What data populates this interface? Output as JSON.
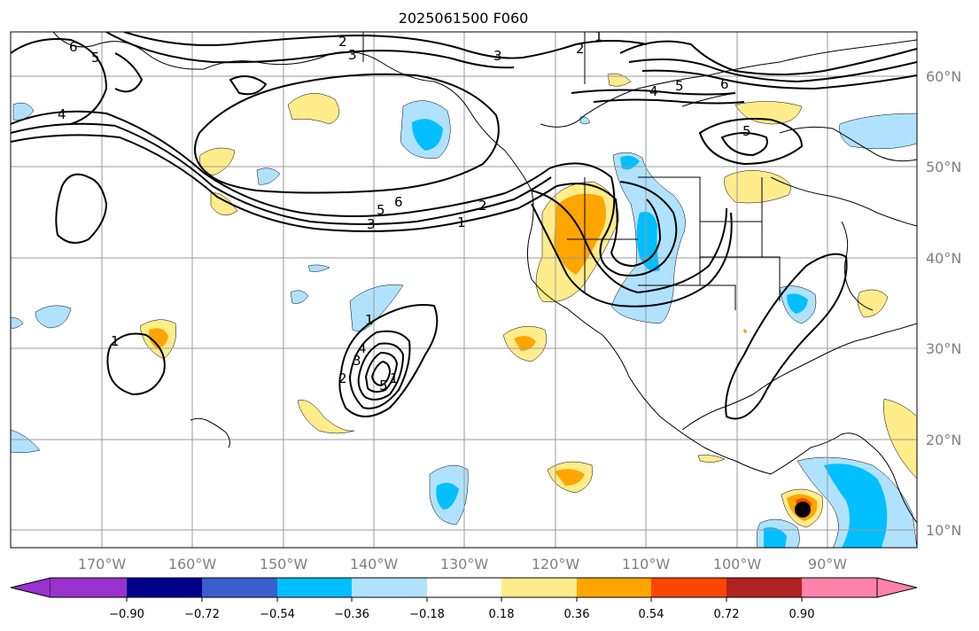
{
  "title": "2025061500 F060",
  "lat_ticks": [
    "60°N",
    "50°N",
    "40°N",
    "30°N",
    "20°N",
    "10°N"
  ],
  "lon_ticks": [
    "170°W",
    "160°W",
    "150°W",
    "140°W",
    "130°W",
    "120°W",
    "110°W",
    "100°W",
    "90°W"
  ],
  "colorbar": {
    "labels": [
      "−0.90",
      "−0.72",
      "−0.54",
      "−0.36",
      "−0.18",
      "0.18",
      "0.36",
      "0.54",
      "0.72",
      "0.90"
    ],
    "colors": [
      "#9932cc",
      "#00008b",
      "#3a5fcd",
      "#00bfff",
      "#b0e2ff",
      "#ffffff",
      "#ffec8b",
      "#ffa500",
      "#ff4500",
      "#b22222",
      "#ff82ab"
    ]
  },
  "contour_labels": [
    "2",
    "3",
    "3",
    "2",
    "1",
    "4",
    "5",
    "6",
    "5",
    "4",
    "6",
    "5",
    "3",
    "5",
    "6",
    "1",
    "2",
    "1",
    "1",
    "2",
    "3",
    "4",
    "5",
    "1"
  ],
  "marker": {
    "name": "storm-center",
    "color": "#000000"
  }
}
